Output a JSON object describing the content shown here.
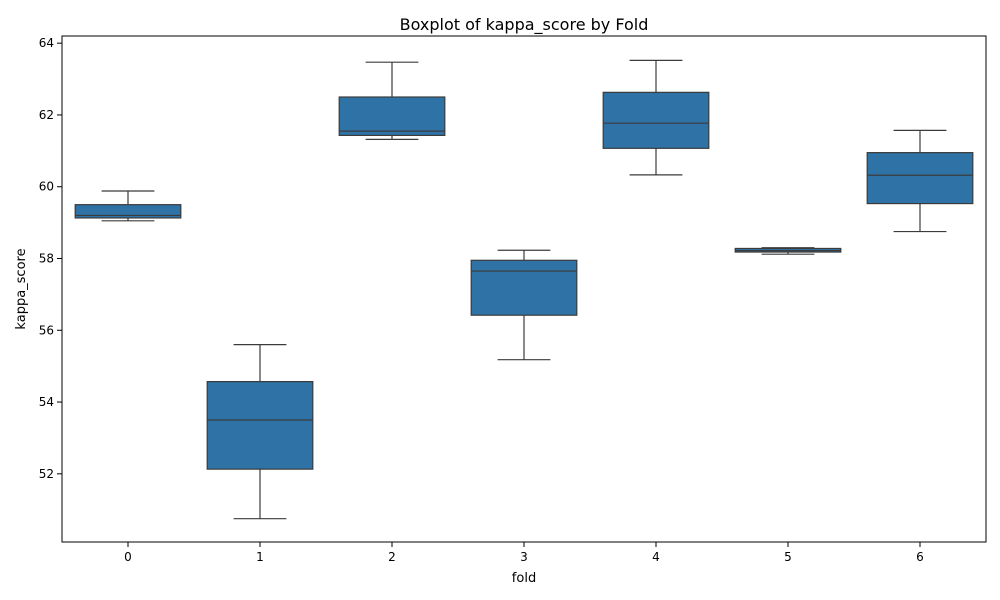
{
  "chart_data": {
    "type": "box",
    "title": "Boxplot of kappa_score by Fold",
    "xlabel": "fold",
    "ylabel": "kappa_score",
    "ylim": [
      50.1,
      64.2
    ],
    "yticks": [
      52,
      54,
      56,
      58,
      60,
      62,
      64
    ],
    "grid": false,
    "colors": {
      "box_fill": "#2e72a6",
      "line": "#3b3b3b"
    },
    "boxes": [
      {
        "category": "0",
        "whisker_low": 59.05,
        "q1": 59.13,
        "median": 59.2,
        "q3": 59.5,
        "whisker_high": 59.88
      },
      {
        "category": "1",
        "whisker_low": 50.75,
        "q1": 52.13,
        "median": 53.5,
        "q3": 54.57,
        "whisker_high": 55.6
      },
      {
        "category": "2",
        "whisker_low": 61.32,
        "q1": 61.43,
        "median": 61.55,
        "q3": 62.5,
        "whisker_high": 63.47
      },
      {
        "category": "3",
        "whisker_low": 55.18,
        "q1": 56.42,
        "median": 57.65,
        "q3": 57.95,
        "whisker_high": 58.23
      },
      {
        "category": "4",
        "whisker_low": 60.33,
        "q1": 61.07,
        "median": 61.77,
        "q3": 62.63,
        "whisker_high": 63.52
      },
      {
        "category": "5",
        "whisker_low": 58.12,
        "q1": 58.18,
        "median": 58.22,
        "q3": 58.28,
        "whisker_high": 58.3
      },
      {
        "category": "6",
        "whisker_low": 58.75,
        "q1": 59.53,
        "median": 60.32,
        "q3": 60.95,
        "whisker_high": 61.57
      }
    ]
  }
}
